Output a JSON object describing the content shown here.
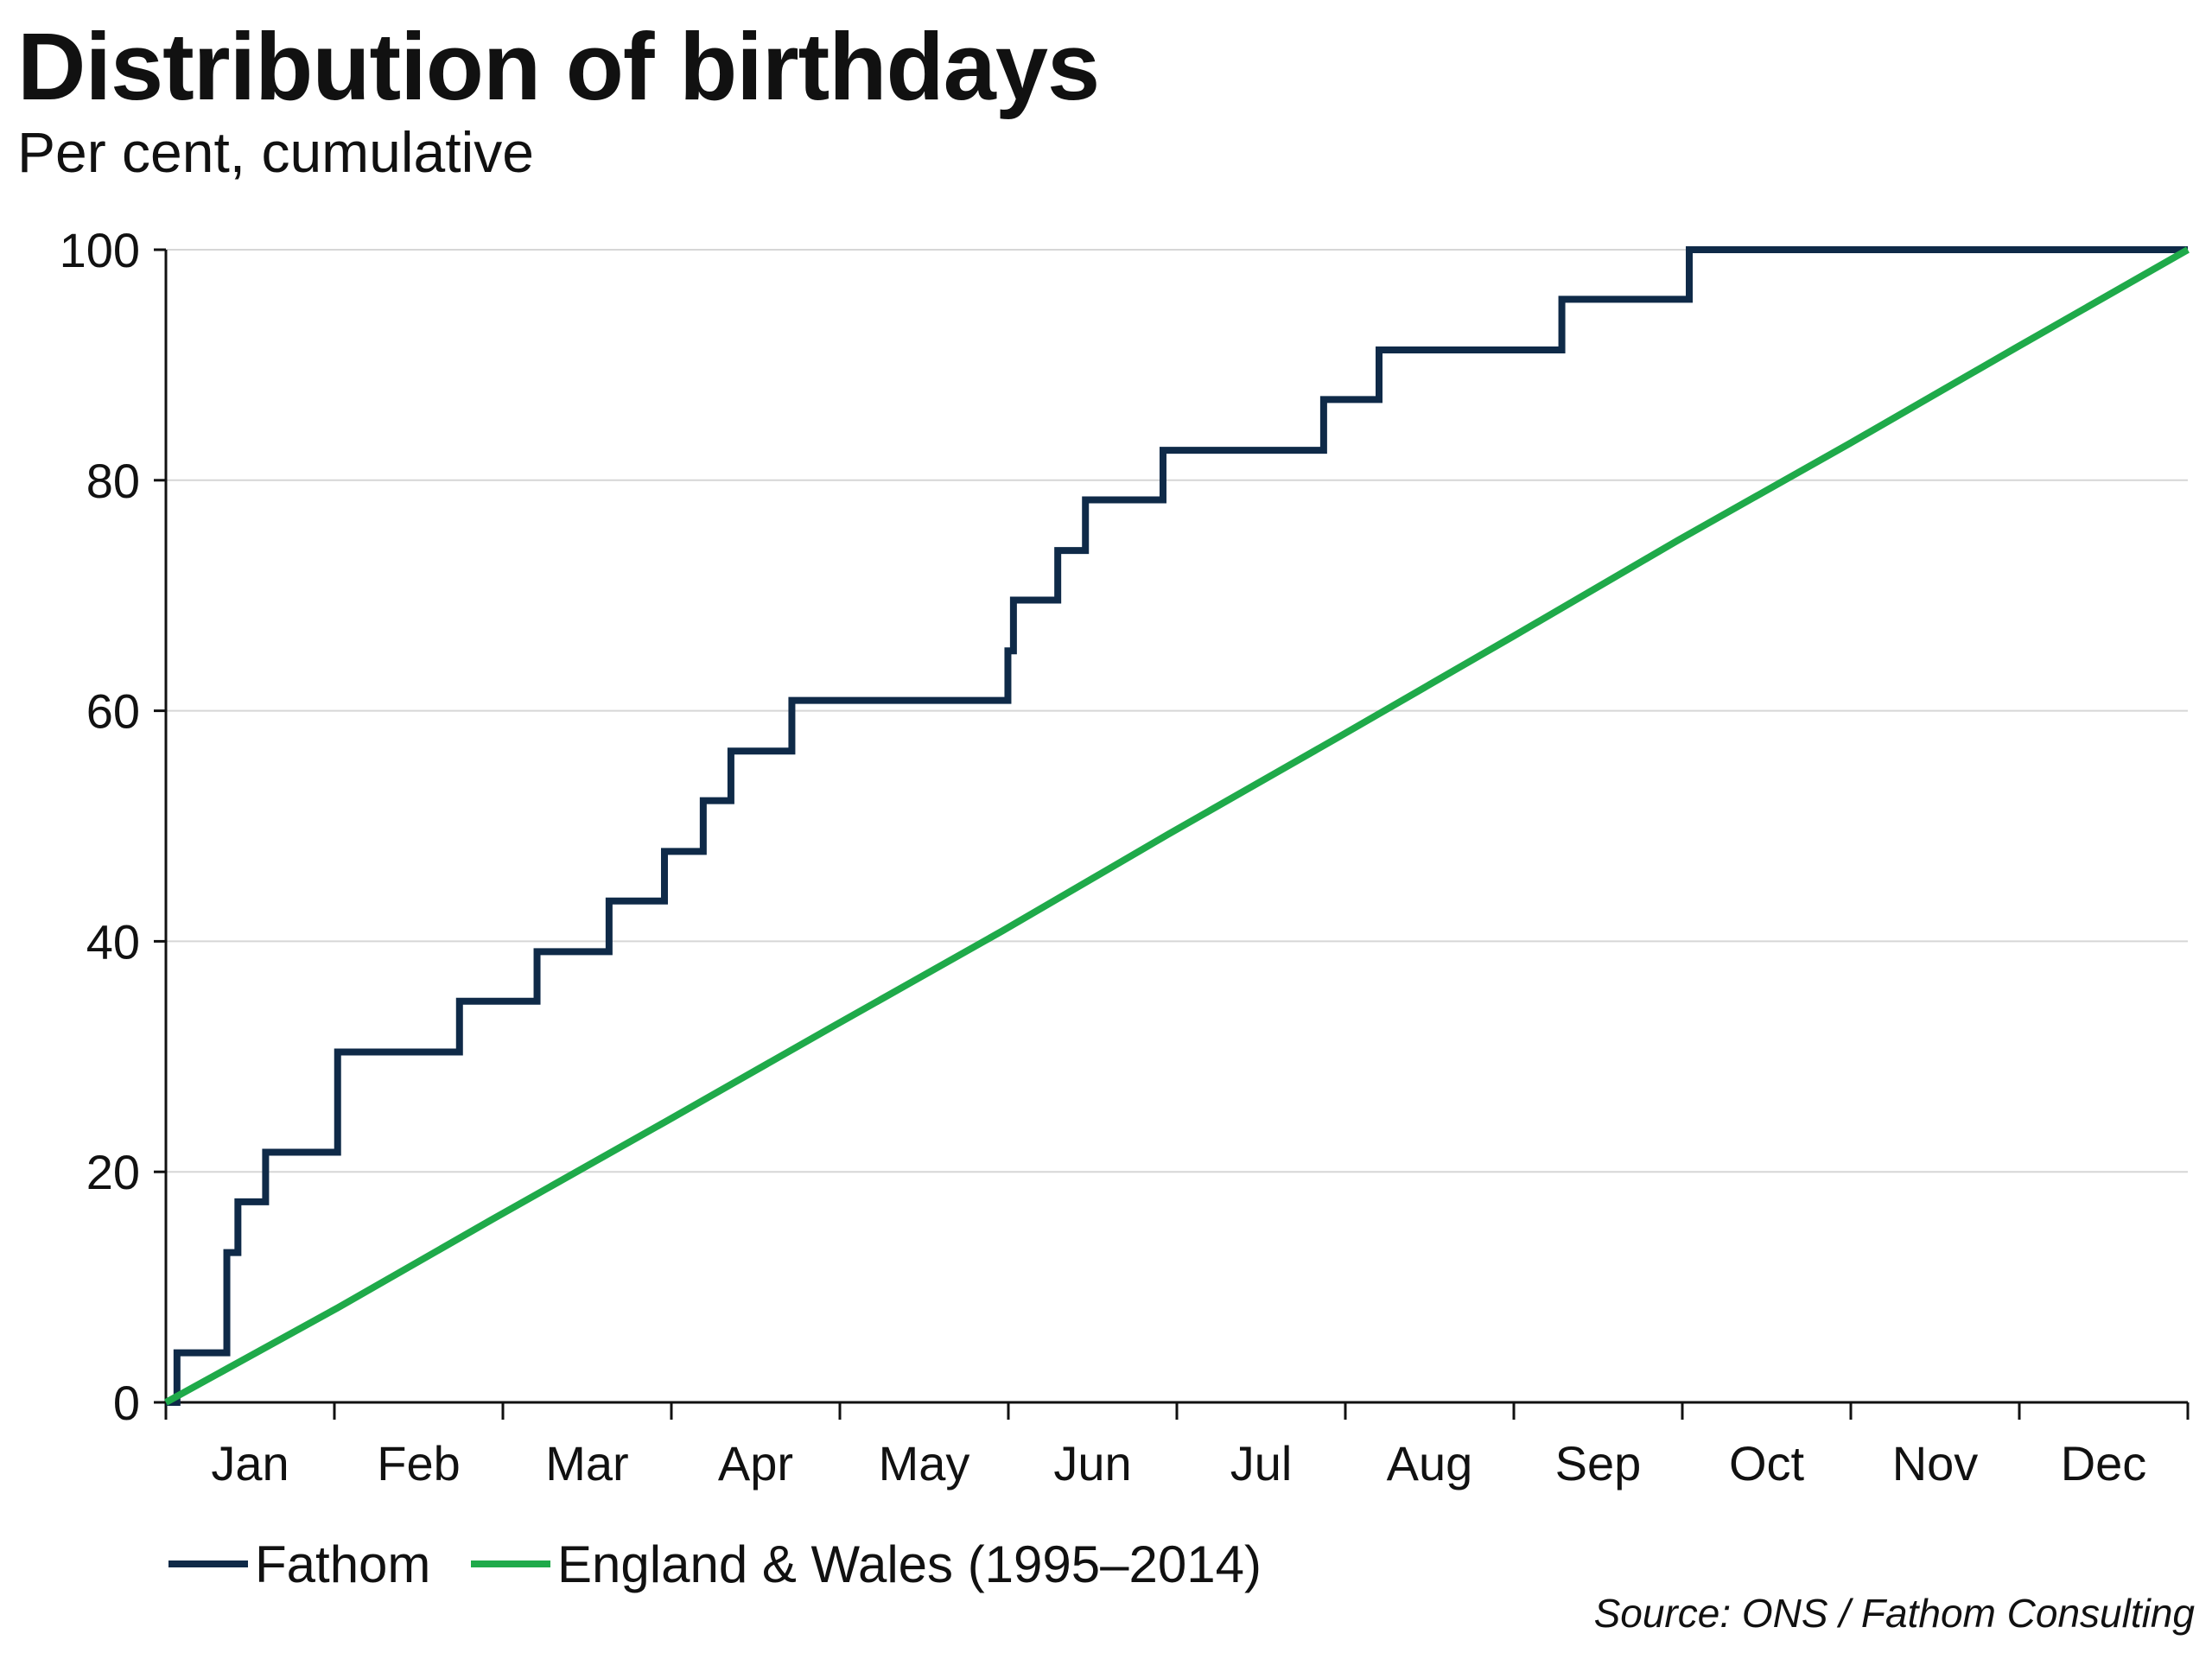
{
  "chart_data": {
    "type": "line",
    "title": "Distribution of birthdays",
    "subtitle": "Per cent, cumulative",
    "source": "Source: ONS / Fathom Consulting",
    "xlabel": "",
    "ylabel": "",
    "ylim": [
      0,
      100
    ],
    "yticks": [
      0,
      20,
      40,
      60,
      80,
      100
    ],
    "xlim": [
      0,
      365
    ],
    "month_labels": [
      "Jan",
      "Feb",
      "Mar",
      "Apr",
      "May",
      "Jun",
      "Jul",
      "Aug",
      "Sep",
      "Oct",
      "Nov",
      "Dec"
    ],
    "grid": true,
    "legend_position": "bottom-left",
    "series": [
      {
        "name": "Fathom",
        "color": "#0f2a48",
        "step": true,
        "x": [
          0,
          2,
          11,
          13,
          18,
          31,
          53,
          67,
          80,
          90,
          97,
          102,
          113,
          152,
          153,
          161,
          166,
          180,
          209,
          219,
          252,
          275,
          298,
          314,
          335
        ],
        "y": [
          0,
          4.3,
          13.0,
          17.4,
          21.7,
          30.4,
          34.8,
          39.1,
          43.5,
          47.8,
          52.2,
          56.5,
          60.9,
          65.2,
          69.6,
          73.9,
          78.3,
          82.6,
          87.0,
          91.3,
          95.7,
          100,
          100,
          100,
          100
        ]
      },
      {
        "name": "England & Wales (1995–2014)",
        "color": "#1faa4a",
        "step": false,
        "x": [
          0,
          31,
          59,
          90,
          120,
          151,
          181,
          212,
          243,
          273,
          304,
          334,
          365
        ],
        "y": [
          0,
          8.2,
          15.9,
          24.3,
          32.5,
          40.9,
          49.3,
          57.8,
          66.4,
          74.8,
          83.2,
          91.5,
          100
        ]
      }
    ]
  }
}
